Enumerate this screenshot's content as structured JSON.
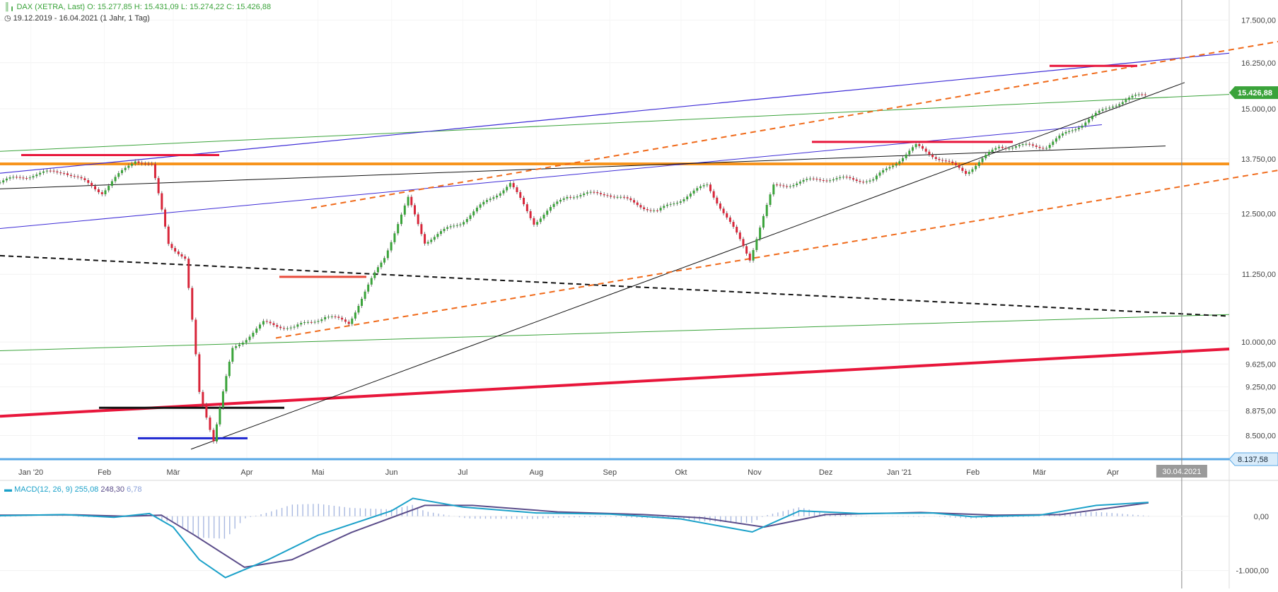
{
  "header": {
    "instrument": "DAX (XETRA, Last)",
    "open": "O: 15.277,85",
    "high": "H: 15.431,09",
    "low": "L: 15.274,22",
    "close": "C: 15.426,88",
    "range": "19.12.2019 - 16.04.2021",
    "interval": "(1 Jahr, 1 Tag)"
  },
  "macd_legend": {
    "label": "MACD(12, 26, 9)",
    "macd": "255,08",
    "signal": "248,30",
    "histogram": "6,78"
  },
  "colors": {
    "up": "#3aa33a",
    "down": "#d8263a",
    "macd": "#1ba1c9",
    "signal": "#5b4d8a",
    "histogram": "#a8b8e0",
    "price_badge": "#3aa33a",
    "low_line": "#5aa9e6"
  },
  "chart_data": [
    {
      "type": "candlestick",
      "title": "DAX (XETRA, Last)",
      "x_tick_labels": [
        "Jan '20",
        "Feb",
        "Mär",
        "Apr",
        "Mai",
        "Jun",
        "Jul",
        "Aug",
        "Sep",
        "Okt",
        "Nov",
        "Dez",
        "Jan '21",
        "Feb",
        "Mär",
        "Apr"
      ],
      "x_tick_dates": [
        "2020-01-01",
        "2020-02-01",
        "2020-03-01",
        "2020-04-01",
        "2020-05-01",
        "2020-06-01",
        "2020-07-01",
        "2020-08-01",
        "2020-09-01",
        "2020-10-01",
        "2020-11-01",
        "2020-12-01",
        "2021-01-01",
        "2021-02-01",
        "2021-03-01",
        "2021-04-01"
      ],
      "xlim": [
        "2019-12-19",
        "2021-05-20"
      ],
      "y_tick_labels": [
        "17.500,00",
        "16.250,00",
        "15.000,00",
        "13.750,00",
        "12.500,00",
        "11.250,00",
        "10.000,00",
        "9.625,00",
        "9.250,00",
        "8.875,00",
        "8.500,00"
      ],
      "y_tick_values": [
        17500,
        16250,
        15000,
        13750,
        12500,
        11250,
        10000,
        9625,
        9250,
        8875,
        8500
      ],
      "ylim": [
        8137.58,
        17900
      ],
      "scale": "log",
      "last_price_label": "15.426,88",
      "low_price_label": "8.137,58",
      "vline_label": "30.04.2021",
      "vline_date": "2021-04-30",
      "monthly_closes": [
        {
          "date": "2019-12-19",
          "close": 13210
        },
        {
          "date": "2020-01-02",
          "close": 13380
        },
        {
          "date": "2020-01-15",
          "close": 13460
        },
        {
          "date": "2020-01-31",
          "close": 12980
        },
        {
          "date": "2020-02-14",
          "close": 13740
        },
        {
          "date": "2020-02-21",
          "close": 13580
        },
        {
          "date": "2020-02-28",
          "close": 11890
        },
        {
          "date": "2020-03-06",
          "close": 11540
        },
        {
          "date": "2020-03-12",
          "close": 9160
        },
        {
          "date": "2020-03-18",
          "close": 8440
        },
        {
          "date": "2020-03-26",
          "close": 9870
        },
        {
          "date": "2020-04-08",
          "close": 10330
        },
        {
          "date": "2020-04-21",
          "close": 10250
        },
        {
          "date": "2020-05-04",
          "close": 10460
        },
        {
          "date": "2020-05-14",
          "close": 10340
        },
        {
          "date": "2020-05-29",
          "close": 11590
        },
        {
          "date": "2020-06-08",
          "close": 12820
        },
        {
          "date": "2020-06-15",
          "close": 11910
        },
        {
          "date": "2020-06-30",
          "close": 12310
        },
        {
          "date": "2020-07-21",
          "close": 13170
        },
        {
          "date": "2020-07-31",
          "close": 12310
        },
        {
          "date": "2020-08-14",
          "close": 12900
        },
        {
          "date": "2020-08-31",
          "close": 12950
        },
        {
          "date": "2020-09-21",
          "close": 12540
        },
        {
          "date": "2020-10-12",
          "close": 13140
        },
        {
          "date": "2020-10-30",
          "close": 11560
        },
        {
          "date": "2020-11-09",
          "close": 13100
        },
        {
          "date": "2020-11-30",
          "close": 13290
        },
        {
          "date": "2020-12-21",
          "close": 13250
        },
        {
          "date": "2021-01-08",
          "close": 14050
        },
        {
          "date": "2021-01-29",
          "close": 13430
        },
        {
          "date": "2021-02-12",
          "close": 14050
        },
        {
          "date": "2021-03-04",
          "close": 14060
        },
        {
          "date": "2021-03-19",
          "close": 14620
        },
        {
          "date": "2021-04-01",
          "close": 15110
        },
        {
          "date": "2021-04-16",
          "close": 15427
        }
      ],
      "horizontal_levels": [
        {
          "price": 13630,
          "label": "support-resistance"
        },
        {
          "price": 8137.58,
          "label": "low"
        }
      ]
    },
    {
      "type": "line",
      "title": "MACD(12, 26, 9)",
      "y_tick_labels": [
        "0,00",
        "-1.000,00"
      ],
      "y_tick_values": [
        0,
        -1000
      ],
      "ylim": [
        -1200,
        400
      ],
      "series": [
        {
          "name": "MACD",
          "values_by_date": [
            {
              "date": "2019-12-19",
              "v": 10
            },
            {
              "date": "2020-01-15",
              "v": 30
            },
            {
              "date": "2020-02-05",
              "v": -20
            },
            {
              "date": "2020-02-20",
              "v": 50
            },
            {
              "date": "2020-03-01",
              "v": -200
            },
            {
              "date": "2020-03-12",
              "v": -800
            },
            {
              "date": "2020-03-23",
              "v": -1130
            },
            {
              "date": "2020-04-10",
              "v": -800
            },
            {
              "date": "2020-05-01",
              "v": -350
            },
            {
              "date": "2020-06-01",
              "v": 100
            },
            {
              "date": "2020-06-10",
              "v": 330
            },
            {
              "date": "2020-07-01",
              "v": 170
            },
            {
              "date": "2020-08-01",
              "v": 60
            },
            {
              "date": "2020-09-01",
              "v": 40
            },
            {
              "date": "2020-10-01",
              "v": -50
            },
            {
              "date": "2020-10-31",
              "v": -290
            },
            {
              "date": "2020-11-20",
              "v": 100
            },
            {
              "date": "2020-12-15",
              "v": 50
            },
            {
              "date": "2021-01-15",
              "v": 60
            },
            {
              "date": "2021-02-01",
              "v": -10
            },
            {
              "date": "2021-03-01",
              "v": 20
            },
            {
              "date": "2021-03-25",
              "v": 200
            },
            {
              "date": "2021-04-16",
              "v": 255
            }
          ]
        },
        {
          "name": "Signal",
          "values_by_date": [
            {
              "date": "2019-12-19",
              "v": 20
            },
            {
              "date": "2020-01-20",
              "v": 25
            },
            {
              "date": "2020-02-10",
              "v": 0
            },
            {
              "date": "2020-02-25",
              "v": 20
            },
            {
              "date": "2020-03-10",
              "v": -350
            },
            {
              "date": "2020-03-31",
              "v": -940
            },
            {
              "date": "2020-04-20",
              "v": -800
            },
            {
              "date": "2020-05-15",
              "v": -300
            },
            {
              "date": "2020-06-15",
              "v": 200
            },
            {
              "date": "2020-07-05",
              "v": 200
            },
            {
              "date": "2020-08-10",
              "v": 80
            },
            {
              "date": "2020-09-15",
              "v": 30
            },
            {
              "date": "2020-10-10",
              "v": -30
            },
            {
              "date": "2020-11-05",
              "v": -200
            },
            {
              "date": "2020-12-01",
              "v": 30
            },
            {
              "date": "2021-01-10",
              "v": 70
            },
            {
              "date": "2021-02-10",
              "v": 20
            },
            {
              "date": "2021-03-10",
              "v": 30
            },
            {
              "date": "2021-04-16",
              "v": 248
            }
          ]
        }
      ]
    }
  ]
}
